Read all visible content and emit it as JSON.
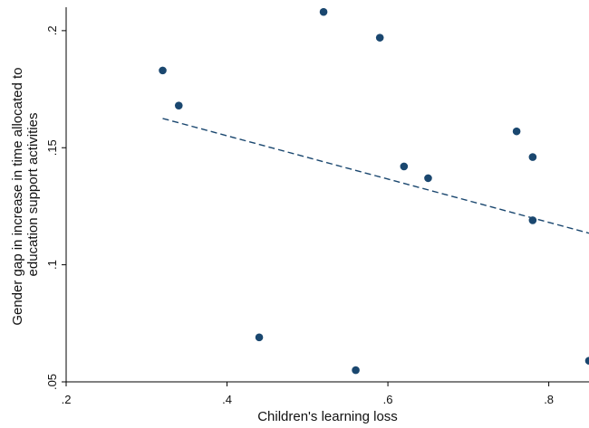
{
  "chart_data": {
    "type": "scatter",
    "title": "",
    "xlabel": "Children's learning loss",
    "ylabel_lines": [
      "Gender gap in increase in time allocated to",
      "education support activities"
    ],
    "xlim": [
      0.2,
      0.85
    ],
    "ylim": [
      0.05,
      0.21
    ],
    "x_ticks": [
      {
        "value": 0.2,
        "label": ".2"
      },
      {
        "value": 0.4,
        "label": ".4"
      },
      {
        "value": 0.6,
        "label": ".6"
      },
      {
        "value": 0.8,
        "label": ".8"
      }
    ],
    "y_ticks": [
      {
        "value": 0.05,
        "label": ".05"
      },
      {
        "value": 0.1,
        "label": ".1"
      },
      {
        "value": 0.15,
        "label": ".15"
      },
      {
        "value": 0.2,
        "label": ".2"
      }
    ],
    "points": [
      {
        "x": 0.32,
        "y": 0.183
      },
      {
        "x": 0.34,
        "y": 0.168
      },
      {
        "x": 0.44,
        "y": 0.069
      },
      {
        "x": 0.52,
        "y": 0.208
      },
      {
        "x": 0.56,
        "y": 0.055
      },
      {
        "x": 0.59,
        "y": 0.197
      },
      {
        "x": 0.62,
        "y": 0.142
      },
      {
        "x": 0.65,
        "y": 0.137
      },
      {
        "x": 0.76,
        "y": 0.157
      },
      {
        "x": 0.78,
        "y": 0.146
      },
      {
        "x": 0.78,
        "y": 0.119
      },
      {
        "x": 0.85,
        "y": 0.059
      }
    ],
    "fit_line": {
      "style": "dashed",
      "x": [
        0.32,
        0.85
      ],
      "y": [
        0.1625,
        0.1135
      ]
    },
    "grid": false,
    "legend": "none",
    "colors": {
      "marker": "#1a476f",
      "fit_line": "#1a476f",
      "axis": "#000000"
    }
  }
}
